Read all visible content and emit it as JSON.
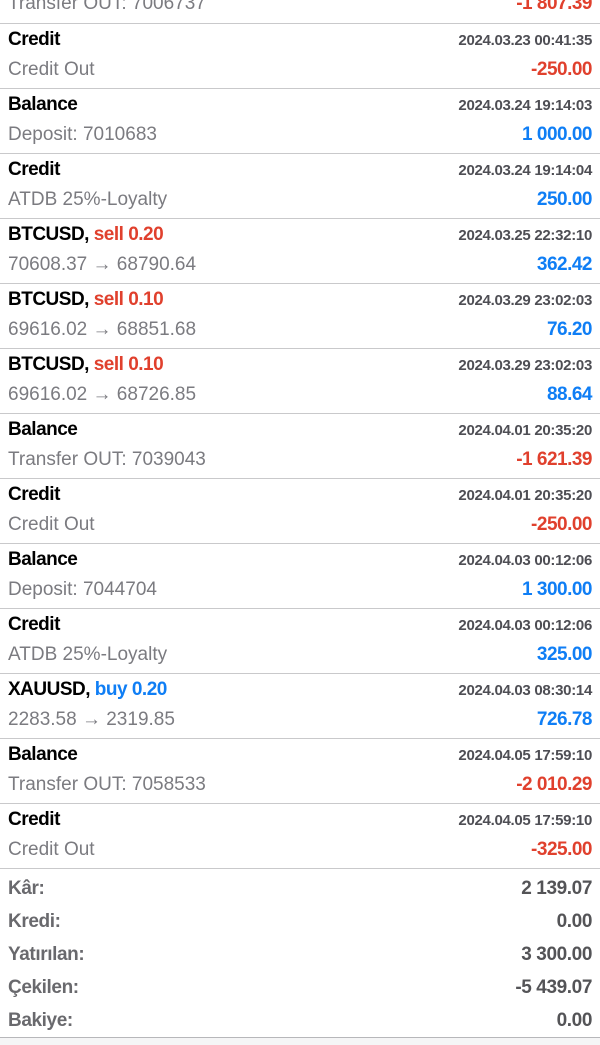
{
  "colors": {
    "negative": "#e0402d",
    "positive": "#0f7ef5",
    "title": "#000000",
    "date": "#4e4e54",
    "detail": "#7b7b80",
    "divider": "#c9c9cb"
  },
  "partial_row": {
    "detail": "Transfer OUT: 7006737",
    "value": "-1 807.39",
    "value_color": "red"
  },
  "transactions": [
    {
      "title": "Credit",
      "action": "",
      "action_color": "",
      "date": "2024.03.23 00:41:35",
      "detail": "Credit Out",
      "value": "-250.00",
      "value_color": "red"
    },
    {
      "title": "Balance",
      "action": "",
      "action_color": "",
      "date": "2024.03.24 19:14:03",
      "detail": "Deposit: 7010683",
      "value": "1 000.00",
      "value_color": "blue"
    },
    {
      "title": "Credit",
      "action": "",
      "action_color": "",
      "date": "2024.03.24 19:14:04",
      "detail": "ATDB 25%-Loyalty",
      "value": "250.00",
      "value_color": "blue"
    },
    {
      "title": "BTCUSD, ",
      "action": "sell 0.20",
      "action_color": "red",
      "date": "2024.03.25 22:32:10",
      "detail": "70608.37 → 68790.64",
      "value": "362.42",
      "value_color": "blue"
    },
    {
      "title": "BTCUSD, ",
      "action": "sell 0.10",
      "action_color": "red",
      "date": "2024.03.29 23:02:03",
      "detail": "69616.02 → 68851.68",
      "value": "76.20",
      "value_color": "blue"
    },
    {
      "title": "BTCUSD, ",
      "action": "sell 0.10",
      "action_color": "red",
      "date": "2024.03.29 23:02:03",
      "detail": "69616.02 → 68726.85",
      "value": "88.64",
      "value_color": "blue"
    },
    {
      "title": "Balance",
      "action": "",
      "action_color": "",
      "date": "2024.04.01 20:35:20",
      "detail": "Transfer OUT: 7039043",
      "value": "-1 621.39",
      "value_color": "red"
    },
    {
      "title": "Credit",
      "action": "",
      "action_color": "",
      "date": "2024.04.01 20:35:20",
      "detail": "Credit Out",
      "value": "-250.00",
      "value_color": "red"
    },
    {
      "title": "Balance",
      "action": "",
      "action_color": "",
      "date": "2024.04.03 00:12:06",
      "detail": "Deposit: 7044704",
      "value": "1 300.00",
      "value_color": "blue"
    },
    {
      "title": "Credit",
      "action": "",
      "action_color": "",
      "date": "2024.04.03 00:12:06",
      "detail": "ATDB 25%-Loyalty",
      "value": "325.00",
      "value_color": "blue"
    },
    {
      "title": "XAUUSD, ",
      "action": "buy 0.20",
      "action_color": "blue",
      "date": "2024.04.03 08:30:14",
      "detail": "2283.58 → 2319.85",
      "value": "726.78",
      "value_color": "blue"
    },
    {
      "title": "Balance",
      "action": "",
      "action_color": "",
      "date": "2024.04.05 17:59:10",
      "detail": "Transfer OUT: 7058533",
      "value": "-2 010.29",
      "value_color": "red"
    },
    {
      "title": "Credit",
      "action": "",
      "action_color": "",
      "date": "2024.04.05 17:59:10",
      "detail": "Credit Out",
      "value": "-325.00",
      "value_color": "red"
    }
  ],
  "summary": [
    {
      "label": "Kâr:",
      "value": "2 139.07"
    },
    {
      "label": "Kredi:",
      "value": "0.00"
    },
    {
      "label": "Yatırılan:",
      "value": "3 300.00"
    },
    {
      "label": "Çekilen:",
      "value": "-5 439.07"
    },
    {
      "label": "Bakiye:",
      "value": "0.00"
    }
  ]
}
